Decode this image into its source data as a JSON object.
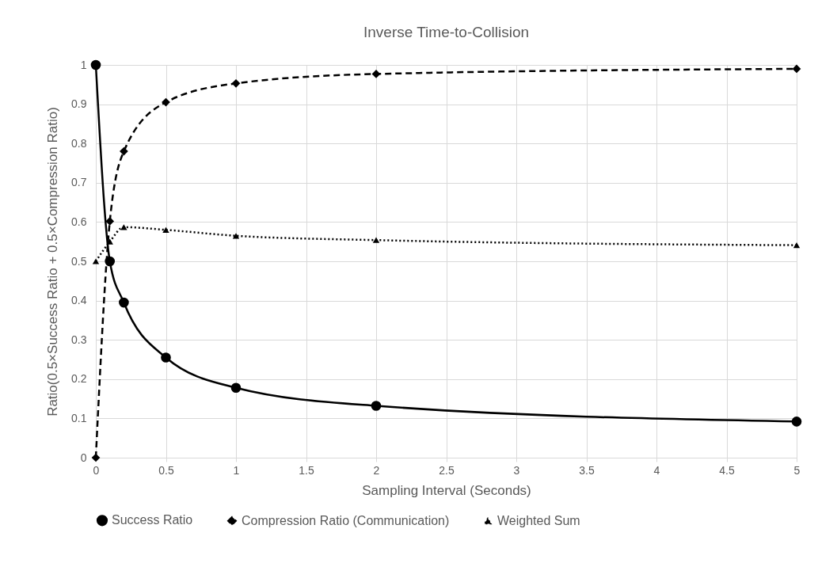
{
  "chart_data": {
    "type": "line",
    "title": "Inverse Time-to-Collision",
    "xlabel": "Sampling Interval (Seconds)",
    "ylabel": "Ratio(0.5×Success Ratio + 0.5×Compression Ratio)",
    "x": [
      0,
      0.1,
      0.2,
      0.5,
      1,
      2,
      5
    ],
    "xlim": [
      0,
      5
    ],
    "xticks": [
      0,
      0.5,
      1,
      1.5,
      2,
      2.5,
      3,
      3.5,
      4,
      4.5,
      5
    ],
    "ylim": [
      0,
      1
    ],
    "yticks": [
      0,
      0.1,
      0.2,
      0.3,
      0.4,
      0.5,
      0.6,
      0.7,
      0.8,
      0.9,
      1
    ],
    "grid": true,
    "legend": "bottom",
    "series": [
      {
        "name": "Success Ratio",
        "color": "#000000",
        "marker": "circle",
        "line_style": "solid",
        "values": [
          1,
          0.5,
          0.395,
          0.255,
          0.178,
          0.132,
          0.092
        ]
      },
      {
        "name": "Compression Ratio (Communication)",
        "color": "#000000",
        "marker": "diamond",
        "line_style": "dashed",
        "values": [
          0,
          0.602,
          0.78,
          0.905,
          0.953,
          0.977,
          0.99
        ]
      },
      {
        "name": "Weighted Sum",
        "color": "#000000",
        "marker": "triangle",
        "line_style": "dotted",
        "values": [
          0.5,
          0.55,
          0.587,
          0.58,
          0.565,
          0.554,
          0.541
        ]
      }
    ]
  }
}
